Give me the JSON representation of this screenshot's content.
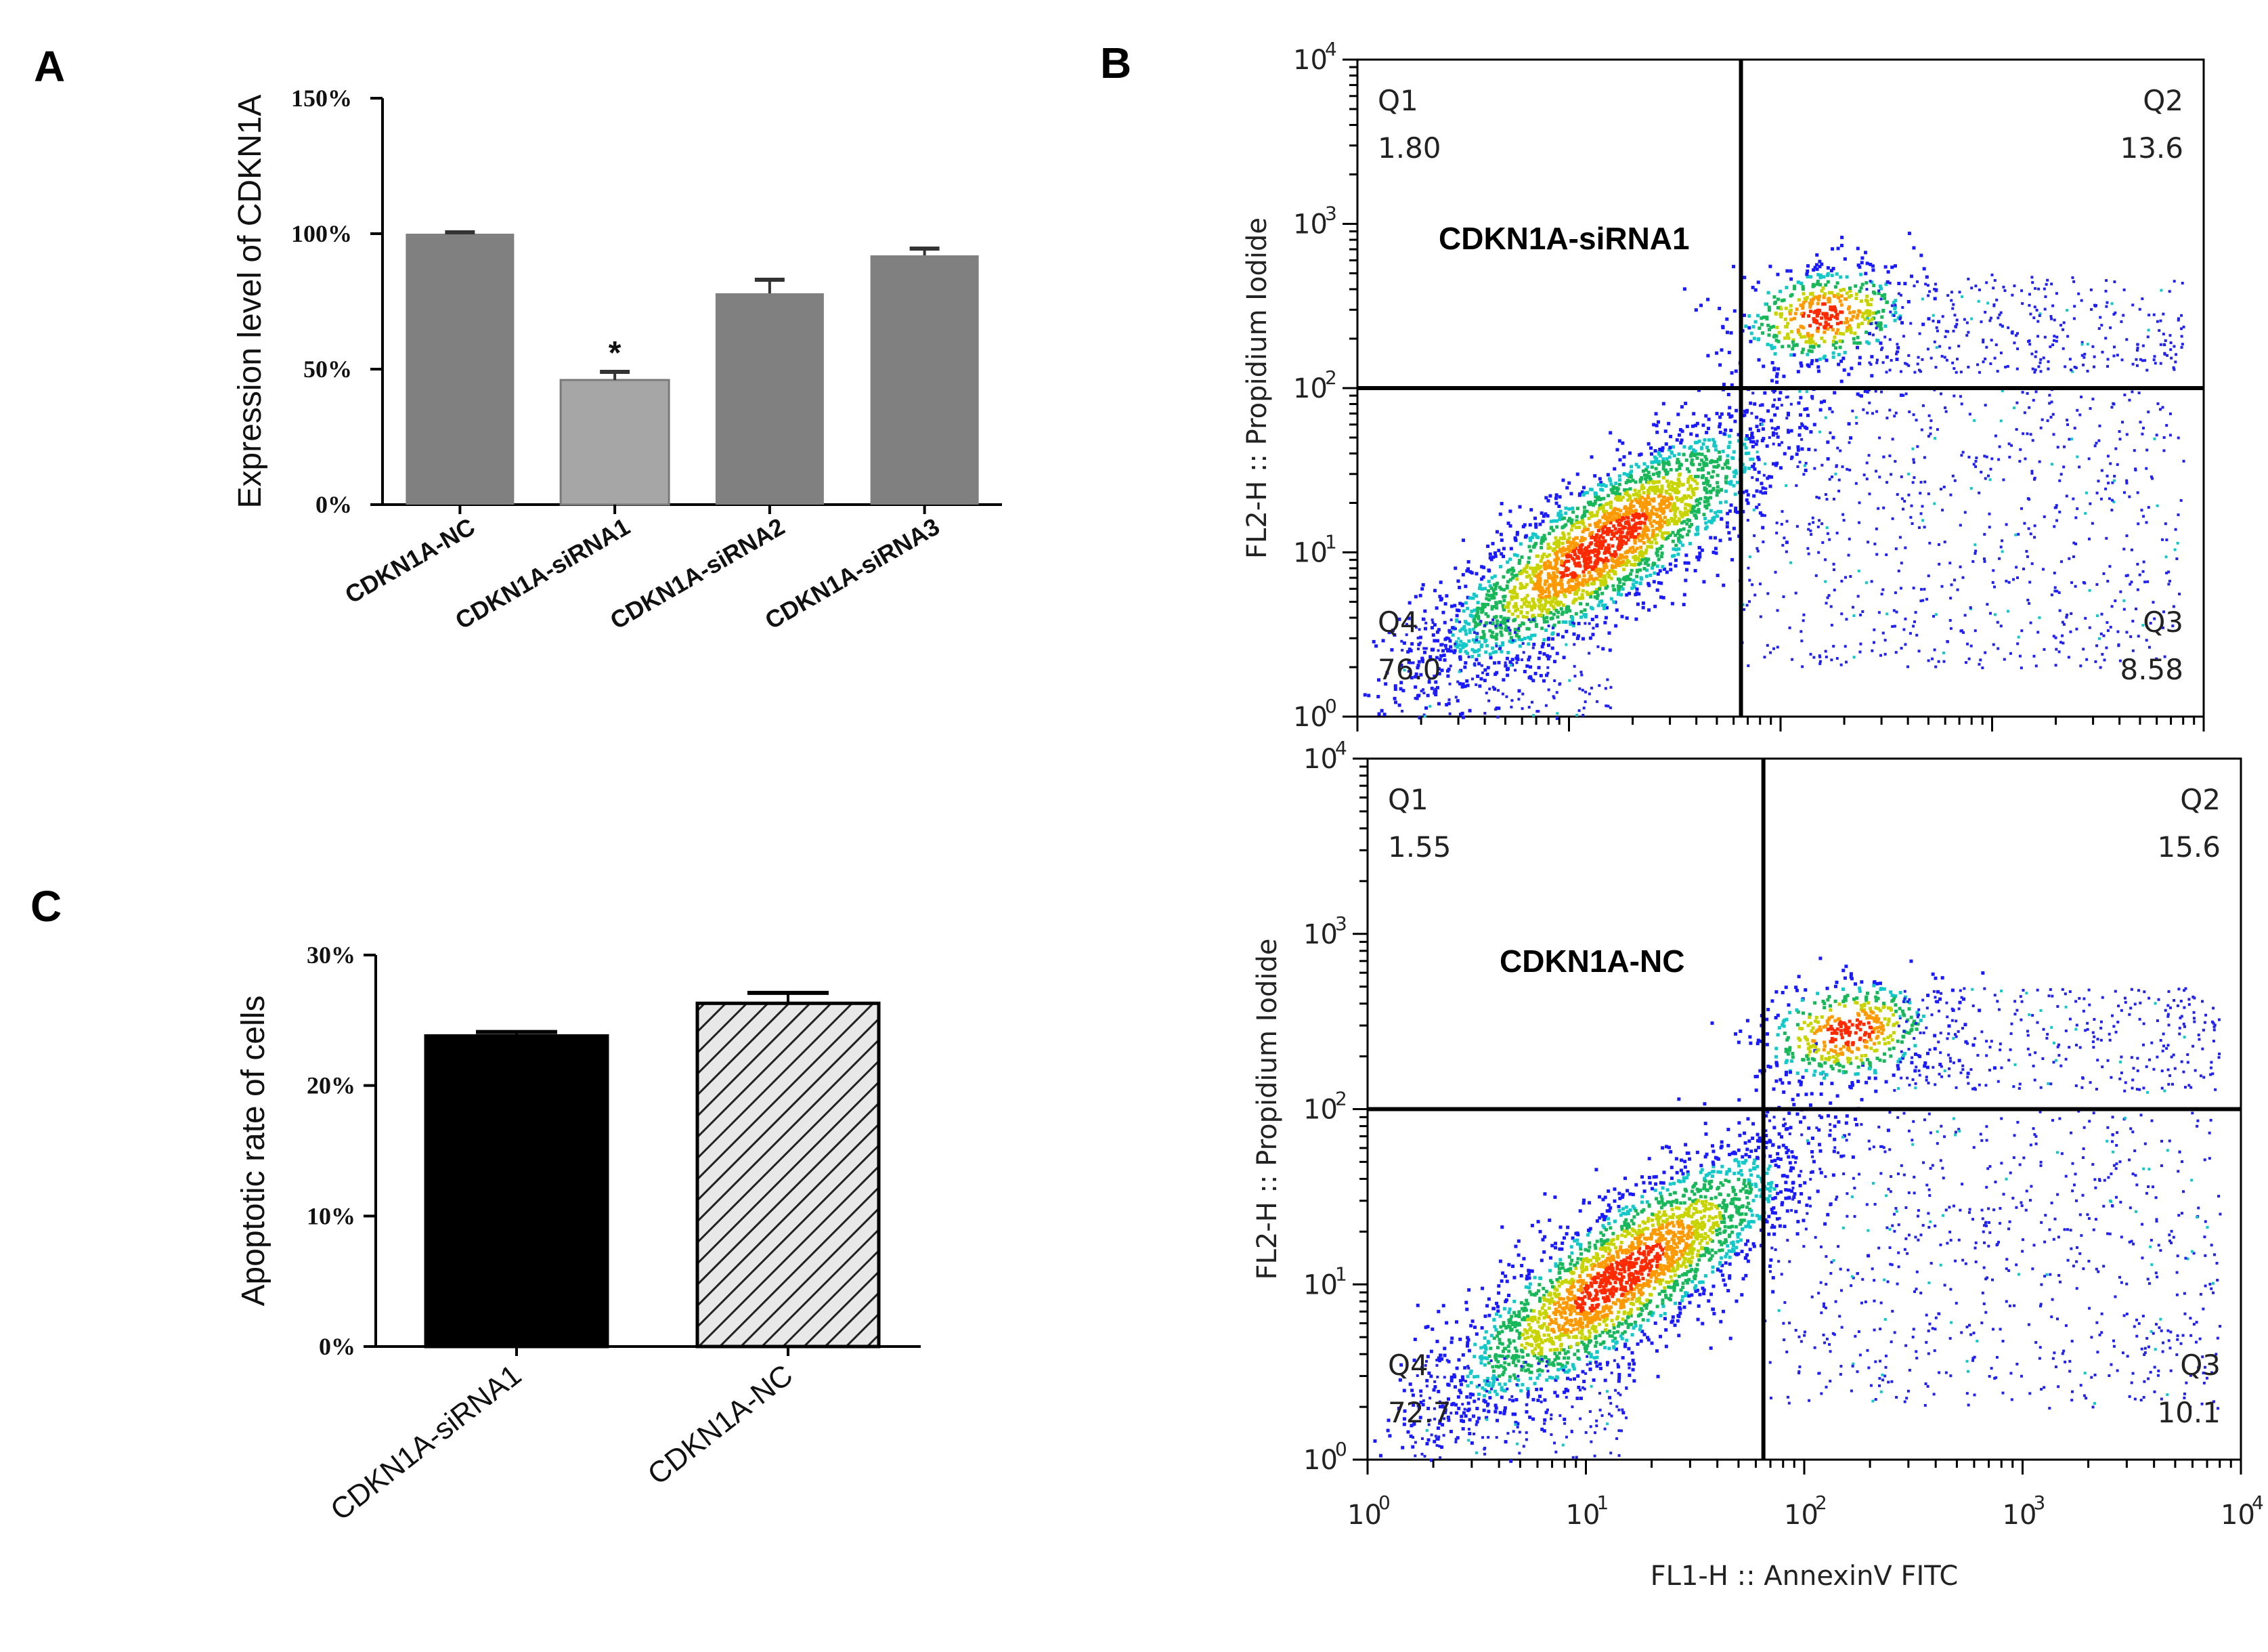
{
  "chart_data": [
    {
      "panel": "A",
      "type": "bar",
      "ylabel": "Expression level of CDKN1A",
      "yticks": [
        "0%",
        "50%",
        "100%",
        "150%"
      ],
      "ylim": [
        0,
        150
      ],
      "categories": [
        "CDKN1A-NC",
        "CDKN1A-siRNA1",
        "CDKN1A-siRNA2",
        "CDKN1A-siRNA3"
      ],
      "values": [
        100,
        46,
        78,
        92
      ],
      "errors": [
        0.5,
        3,
        5,
        2.5
      ],
      "bar_colors": [
        "#808080",
        "#a6a6a6",
        "#808080",
        "#808080"
      ],
      "annotation": "*",
      "annotation_category": "CDKN1A-siRNA1"
    },
    {
      "panel": "C",
      "type": "bar",
      "ylabel": "Apoptotic rate of cells",
      "yticks": [
        "0%",
        "10%",
        "20%",
        "30%"
      ],
      "ylim": [
        0,
        30
      ],
      "categories": [
        "CDKN1A-siRNA1",
        "CDKN1A-NC"
      ],
      "values": [
        23.8,
        26.3
      ],
      "errors": [
        0.3,
        0.8
      ],
      "bar_fill": [
        "solid-black",
        "hatched"
      ]
    },
    {
      "panel": "B",
      "type": "scatter",
      "subplots": [
        {
          "label": "CDKN1A-siRNA1",
          "xlabel": "FL1-H :: AnnexinV FITC",
          "ylabel": "FL2-H :: Propidium Iodide",
          "axis_scale": "log",
          "xlim": [
            1,
            10000
          ],
          "ylim": [
            1,
            10000
          ],
          "gate": {
            "x": 65,
            "y": 100
          },
          "quadrants": [
            {
              "name": "Q1",
              "value": "1.80"
            },
            {
              "name": "Q2",
              "value": "13.6"
            },
            {
              "name": "Q3",
              "value": "8.58"
            },
            {
              "name": "Q4",
              "value": "76.0"
            }
          ]
        },
        {
          "label": "CDKN1A-NC",
          "xlabel": "FL1-H :: AnnexinV FITC",
          "ylabel": "FL2-H :: Propidium Iodide",
          "axis_scale": "log",
          "xlim": [
            1,
            10000
          ],
          "ylim": [
            1,
            10000
          ],
          "gate": {
            "x": 65,
            "y": 100
          },
          "quadrants": [
            {
              "name": "Q1",
              "value": "1.55"
            },
            {
              "name": "Q2",
              "value": "15.6"
            },
            {
              "name": "Q3",
              "value": "10.1"
            },
            {
              "name": "Q4",
              "value": "72.7"
            }
          ]
        }
      ],
      "tick_base": "10",
      "tick_exponents": [
        "0",
        "1",
        "2",
        "3",
        "4"
      ]
    }
  ],
  "panels": {
    "a": "A",
    "b": "B",
    "c": "C"
  }
}
